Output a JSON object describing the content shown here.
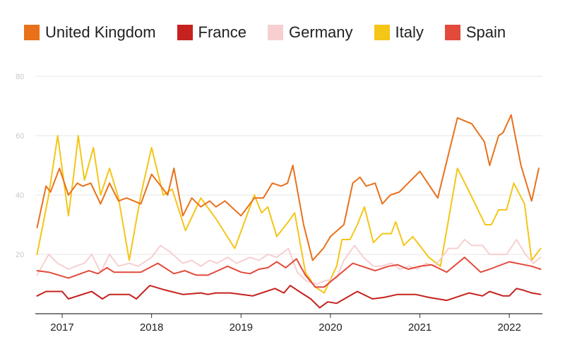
{
  "chart_data": {
    "type": "line",
    "title": "",
    "xlabel": "",
    "ylabel": "",
    "ylim": [
      0,
      80
    ],
    "yticks": [
      20,
      40,
      60,
      80
    ],
    "xlim": [
      2016.7,
      2022.37
    ],
    "xticks": [
      {
        "value": 2017,
        "label": "2017"
      },
      {
        "value": 2018,
        "label": "2018"
      },
      {
        "value": 2019,
        "label": "2019"
      },
      {
        "value": 2020,
        "label": "2020"
      },
      {
        "value": 2021,
        "label": "2021"
      },
      {
        "value": 2022,
        "label": "2022"
      }
    ],
    "grid": true,
    "legend_position": "top",
    "series": [
      {
        "name": "Italy",
        "color": "#f5c518",
        "points": [
          [
            2016.72,
            20
          ],
          [
            2016.85,
            40
          ],
          [
            2016.95,
            60
          ],
          [
            2017.07,
            33
          ],
          [
            2017.13,
            47
          ],
          [
            2017.18,
            60
          ],
          [
            2017.25,
            45
          ],
          [
            2017.35,
            56
          ],
          [
            2017.43,
            40
          ],
          [
            2017.53,
            49
          ],
          [
            2017.63,
            39
          ],
          [
            2017.75,
            18
          ],
          [
            2017.88,
            40
          ],
          [
            2018.0,
            56
          ],
          [
            2018.13,
            40
          ],
          [
            2018.23,
            42
          ],
          [
            2018.38,
            28
          ],
          [
            2018.55,
            39
          ],
          [
            2018.72,
            32
          ],
          [
            2018.93,
            22
          ],
          [
            2019.15,
            40
          ],
          [
            2019.23,
            34
          ],
          [
            2019.3,
            36
          ],
          [
            2019.4,
            26
          ],
          [
            2019.53,
            31
          ],
          [
            2019.6,
            34
          ],
          [
            2019.72,
            14
          ],
          [
            2019.83,
            9
          ],
          [
            2019.93,
            7
          ],
          [
            2020.07,
            16
          ],
          [
            2020.13,
            25
          ],
          [
            2020.22,
            25
          ],
          [
            2020.3,
            30
          ],
          [
            2020.38,
            36
          ],
          [
            2020.48,
            24
          ],
          [
            2020.58,
            27
          ],
          [
            2020.68,
            27
          ],
          [
            2020.73,
            31
          ],
          [
            2020.82,
            23
          ],
          [
            2020.92,
            26
          ],
          [
            2021.1,
            19
          ],
          [
            2021.23,
            16
          ],
          [
            2021.42,
            49
          ],
          [
            2021.57,
            40
          ],
          [
            2021.73,
            30
          ],
          [
            2021.8,
            30
          ],
          [
            2021.88,
            35
          ],
          [
            2021.97,
            35
          ],
          [
            2022.05,
            44
          ],
          [
            2022.17,
            37
          ],
          [
            2022.25,
            18
          ],
          [
            2022.35,
            22
          ]
        ]
      },
      {
        "name": "Germany",
        "color": "#f7cfd1",
        "points": [
          [
            2016.72,
            13
          ],
          [
            2016.85,
            20
          ],
          [
            2016.95,
            17
          ],
          [
            2017.07,
            15
          ],
          [
            2017.15,
            16
          ],
          [
            2017.25,
            17
          ],
          [
            2017.33,
            20
          ],
          [
            2017.43,
            14
          ],
          [
            2017.53,
            20
          ],
          [
            2017.63,
            16
          ],
          [
            2017.75,
            17
          ],
          [
            2017.85,
            16
          ],
          [
            2018.0,
            19
          ],
          [
            2018.1,
            23
          ],
          [
            2018.2,
            21
          ],
          [
            2018.35,
            17
          ],
          [
            2018.45,
            18
          ],
          [
            2018.55,
            16
          ],
          [
            2018.65,
            18
          ],
          [
            2018.73,
            17
          ],
          [
            2018.85,
            19
          ],
          [
            2018.95,
            17
          ],
          [
            2019.1,
            19
          ],
          [
            2019.2,
            18
          ],
          [
            2019.3,
            20
          ],
          [
            2019.4,
            19
          ],
          [
            2019.53,
            22
          ],
          [
            2019.63,
            14
          ],
          [
            2019.73,
            11
          ],
          [
            2019.85,
            10
          ],
          [
            2019.93,
            11
          ],
          [
            2020.07,
            12
          ],
          [
            2020.15,
            18
          ],
          [
            2020.27,
            23
          ],
          [
            2020.37,
            19
          ],
          [
            2020.48,
            16
          ],
          [
            2020.57,
            16
          ],
          [
            2020.68,
            17
          ],
          [
            2020.78,
            15
          ],
          [
            2020.88,
            16
          ],
          [
            2020.97,
            15
          ],
          [
            2021.07,
            17
          ],
          [
            2021.17,
            16
          ],
          [
            2021.32,
            22
          ],
          [
            2021.42,
            22
          ],
          [
            2021.5,
            25
          ],
          [
            2021.58,
            23
          ],
          [
            2021.7,
            23
          ],
          [
            2021.78,
            20
          ],
          [
            2021.88,
            20
          ],
          [
            2021.97,
            20
          ],
          [
            2022.08,
            25
          ],
          [
            2022.18,
            20
          ],
          [
            2022.27,
            17
          ],
          [
            2022.35,
            19
          ]
        ]
      },
      {
        "name": "Spain",
        "color": "#e24a3b",
        "points": [
          [
            2016.72,
            14.5
          ],
          [
            2016.85,
            14
          ],
          [
            2017.07,
            12
          ],
          [
            2017.3,
            14.5
          ],
          [
            2017.4,
            13.5
          ],
          [
            2017.5,
            15.5
          ],
          [
            2017.58,
            14
          ],
          [
            2017.75,
            14
          ],
          [
            2017.88,
            14
          ],
          [
            2018.07,
            17
          ],
          [
            2018.25,
            13.5
          ],
          [
            2018.37,
            14.5
          ],
          [
            2018.5,
            13
          ],
          [
            2018.63,
            13
          ],
          [
            2018.85,
            16
          ],
          [
            2019.0,
            14
          ],
          [
            2019.1,
            13.5
          ],
          [
            2019.2,
            15
          ],
          [
            2019.3,
            15.5
          ],
          [
            2019.4,
            17.5
          ],
          [
            2019.5,
            15.5
          ],
          [
            2019.62,
            18.5
          ],
          [
            2019.72,
            13
          ],
          [
            2019.83,
            9
          ],
          [
            2019.93,
            9
          ],
          [
            2020.05,
            12
          ],
          [
            2020.25,
            17
          ],
          [
            2020.5,
            14.5
          ],
          [
            2020.65,
            16
          ],
          [
            2020.75,
            16.5
          ],
          [
            2020.87,
            15
          ],
          [
            2021.0,
            16
          ],
          [
            2021.13,
            16.5
          ],
          [
            2021.3,
            14
          ],
          [
            2021.5,
            19
          ],
          [
            2021.68,
            14
          ],
          [
            2021.78,
            15
          ],
          [
            2022.0,
            17.5
          ],
          [
            2022.25,
            16
          ],
          [
            2022.35,
            15
          ]
        ]
      },
      {
        "name": "France",
        "color": "#c5221f",
        "points": [
          [
            2016.72,
            6
          ],
          [
            2016.82,
            7.5
          ],
          [
            2017.0,
            7.5
          ],
          [
            2017.07,
            5
          ],
          [
            2017.33,
            7.5
          ],
          [
            2017.45,
            5
          ],
          [
            2017.53,
            6.5
          ],
          [
            2017.75,
            6.5
          ],
          [
            2017.83,
            5
          ],
          [
            2017.98,
            9.5
          ],
          [
            2018.15,
            8
          ],
          [
            2018.35,
            6.5
          ],
          [
            2018.55,
            7
          ],
          [
            2018.63,
            6.5
          ],
          [
            2018.72,
            7
          ],
          [
            2018.88,
            7
          ],
          [
            2019.13,
            6
          ],
          [
            2019.28,
            7.5
          ],
          [
            2019.38,
            8.5
          ],
          [
            2019.48,
            7
          ],
          [
            2019.55,
            9.5
          ],
          [
            2019.65,
            7.5
          ],
          [
            2019.78,
            5
          ],
          [
            2019.88,
            2
          ],
          [
            2019.97,
            4
          ],
          [
            2020.07,
            3.5
          ],
          [
            2020.3,
            7.5
          ],
          [
            2020.47,
            5
          ],
          [
            2020.6,
            5.5
          ],
          [
            2020.75,
            6.5
          ],
          [
            2020.95,
            6.5
          ],
          [
            2021.1,
            5.5
          ],
          [
            2021.3,
            4.5
          ],
          [
            2021.45,
            6
          ],
          [
            2021.55,
            7
          ],
          [
            2021.7,
            6
          ],
          [
            2021.78,
            7.5
          ],
          [
            2021.93,
            6
          ],
          [
            2022.0,
            6
          ],
          [
            2022.08,
            8.5
          ],
          [
            2022.15,
            8
          ],
          [
            2022.25,
            7
          ],
          [
            2022.35,
            6.5
          ]
        ]
      },
      {
        "name": "United Kingdom",
        "color": "#e8711a",
        "points": [
          [
            2016.72,
            29
          ],
          [
            2016.82,
            43
          ],
          [
            2016.87,
            41
          ],
          [
            2016.97,
            49
          ],
          [
            2017.07,
            40
          ],
          [
            2017.17,
            44
          ],
          [
            2017.23,
            43
          ],
          [
            2017.32,
            44
          ],
          [
            2017.43,
            37
          ],
          [
            2017.53,
            44
          ],
          [
            2017.63,
            38
          ],
          [
            2017.72,
            39
          ],
          [
            2017.88,
            37
          ],
          [
            2018.0,
            47
          ],
          [
            2018.13,
            42
          ],
          [
            2018.18,
            40
          ],
          [
            2018.25,
            49
          ],
          [
            2018.35,
            33
          ],
          [
            2018.45,
            39
          ],
          [
            2018.55,
            36
          ],
          [
            2018.65,
            38
          ],
          [
            2018.72,
            36
          ],
          [
            2018.82,
            38
          ],
          [
            2019.0,
            33
          ],
          [
            2019.15,
            39
          ],
          [
            2019.25,
            39
          ],
          [
            2019.35,
            44
          ],
          [
            2019.45,
            43
          ],
          [
            2019.52,
            44
          ],
          [
            2019.58,
            50
          ],
          [
            2019.7,
            30
          ],
          [
            2019.8,
            18
          ],
          [
            2019.92,
            22
          ],
          [
            2020.0,
            26
          ],
          [
            2020.15,
            30
          ],
          [
            2020.25,
            44
          ],
          [
            2020.33,
            46
          ],
          [
            2020.4,
            43
          ],
          [
            2020.5,
            44
          ],
          [
            2020.58,
            37
          ],
          [
            2020.67,
            40
          ],
          [
            2020.77,
            41
          ],
          [
            2021.0,
            48
          ],
          [
            2021.2,
            39
          ],
          [
            2021.42,
            66
          ],
          [
            2021.58,
            64
          ],
          [
            2021.72,
            58
          ],
          [
            2021.78,
            50
          ],
          [
            2021.88,
            60
          ],
          [
            2021.93,
            61
          ],
          [
            2022.02,
            67
          ],
          [
            2022.13,
            50
          ],
          [
            2022.25,
            38
          ],
          [
            2022.33,
            49
          ]
        ]
      }
    ]
  }
}
